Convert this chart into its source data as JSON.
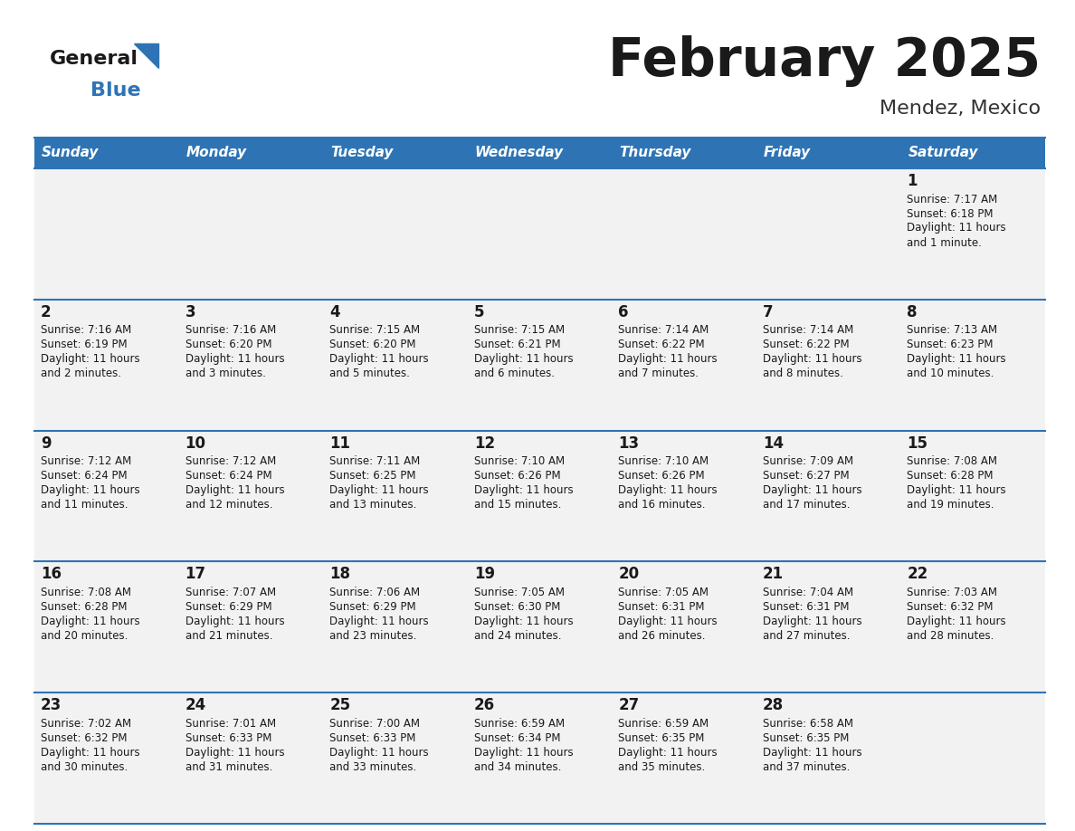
{
  "title": "February 2025",
  "subtitle": "Mendez, Mexico",
  "header_bg": "#2E74B5",
  "header_text_color": "#FFFFFF",
  "cell_bg": "#F2F2F2",
  "separator_color": "#2E74B5",
  "text_color": "#1a1a1a",
  "days_of_week": [
    "Sunday",
    "Monday",
    "Tuesday",
    "Wednesday",
    "Thursday",
    "Friday",
    "Saturday"
  ],
  "calendar_data": [
    [
      null,
      null,
      null,
      null,
      null,
      null,
      {
        "day": 1,
        "sunrise": "7:17 AM",
        "sunset": "6:18 PM",
        "daylight": "11 hours",
        "daylight2": "and 1 minute."
      }
    ],
    [
      {
        "day": 2,
        "sunrise": "7:16 AM",
        "sunset": "6:19 PM",
        "daylight": "11 hours",
        "daylight2": "and 2 minutes."
      },
      {
        "day": 3,
        "sunrise": "7:16 AM",
        "sunset": "6:20 PM",
        "daylight": "11 hours",
        "daylight2": "and 3 minutes."
      },
      {
        "day": 4,
        "sunrise": "7:15 AM",
        "sunset": "6:20 PM",
        "daylight": "11 hours",
        "daylight2": "and 5 minutes."
      },
      {
        "day": 5,
        "sunrise": "7:15 AM",
        "sunset": "6:21 PM",
        "daylight": "11 hours",
        "daylight2": "and 6 minutes."
      },
      {
        "day": 6,
        "sunrise": "7:14 AM",
        "sunset": "6:22 PM",
        "daylight": "11 hours",
        "daylight2": "and 7 minutes."
      },
      {
        "day": 7,
        "sunrise": "7:14 AM",
        "sunset": "6:22 PM",
        "daylight": "11 hours",
        "daylight2": "and 8 minutes."
      },
      {
        "day": 8,
        "sunrise": "7:13 AM",
        "sunset": "6:23 PM",
        "daylight": "11 hours",
        "daylight2": "and 10 minutes."
      }
    ],
    [
      {
        "day": 9,
        "sunrise": "7:12 AM",
        "sunset": "6:24 PM",
        "daylight": "11 hours",
        "daylight2": "and 11 minutes."
      },
      {
        "day": 10,
        "sunrise": "7:12 AM",
        "sunset": "6:24 PM",
        "daylight": "11 hours",
        "daylight2": "and 12 minutes."
      },
      {
        "day": 11,
        "sunrise": "7:11 AM",
        "sunset": "6:25 PM",
        "daylight": "11 hours",
        "daylight2": "and 13 minutes."
      },
      {
        "day": 12,
        "sunrise": "7:10 AM",
        "sunset": "6:26 PM",
        "daylight": "11 hours",
        "daylight2": "and 15 minutes."
      },
      {
        "day": 13,
        "sunrise": "7:10 AM",
        "sunset": "6:26 PM",
        "daylight": "11 hours",
        "daylight2": "and 16 minutes."
      },
      {
        "day": 14,
        "sunrise": "7:09 AM",
        "sunset": "6:27 PM",
        "daylight": "11 hours",
        "daylight2": "and 17 minutes."
      },
      {
        "day": 15,
        "sunrise": "7:08 AM",
        "sunset": "6:28 PM",
        "daylight": "11 hours",
        "daylight2": "and 19 minutes."
      }
    ],
    [
      {
        "day": 16,
        "sunrise": "7:08 AM",
        "sunset": "6:28 PM",
        "daylight": "11 hours",
        "daylight2": "and 20 minutes."
      },
      {
        "day": 17,
        "sunrise": "7:07 AM",
        "sunset": "6:29 PM",
        "daylight": "11 hours",
        "daylight2": "and 21 minutes."
      },
      {
        "day": 18,
        "sunrise": "7:06 AM",
        "sunset": "6:29 PM",
        "daylight": "11 hours",
        "daylight2": "and 23 minutes."
      },
      {
        "day": 19,
        "sunrise": "7:05 AM",
        "sunset": "6:30 PM",
        "daylight": "11 hours",
        "daylight2": "and 24 minutes."
      },
      {
        "day": 20,
        "sunrise": "7:05 AM",
        "sunset": "6:31 PM",
        "daylight": "11 hours",
        "daylight2": "and 26 minutes."
      },
      {
        "day": 21,
        "sunrise": "7:04 AM",
        "sunset": "6:31 PM",
        "daylight": "11 hours",
        "daylight2": "and 27 minutes."
      },
      {
        "day": 22,
        "sunrise": "7:03 AM",
        "sunset": "6:32 PM",
        "daylight": "11 hours",
        "daylight2": "and 28 minutes."
      }
    ],
    [
      {
        "day": 23,
        "sunrise": "7:02 AM",
        "sunset": "6:32 PM",
        "daylight": "11 hours",
        "daylight2": "and 30 minutes."
      },
      {
        "day": 24,
        "sunrise": "7:01 AM",
        "sunset": "6:33 PM",
        "daylight": "11 hours",
        "daylight2": "and 31 minutes."
      },
      {
        "day": 25,
        "sunrise": "7:00 AM",
        "sunset": "6:33 PM",
        "daylight": "11 hours",
        "daylight2": "and 33 minutes."
      },
      {
        "day": 26,
        "sunrise": "6:59 AM",
        "sunset": "6:34 PM",
        "daylight": "11 hours",
        "daylight2": "and 34 minutes."
      },
      {
        "day": 27,
        "sunrise": "6:59 AM",
        "sunset": "6:35 PM",
        "daylight": "11 hours",
        "daylight2": "and 35 minutes."
      },
      {
        "day": 28,
        "sunrise": "6:58 AM",
        "sunset": "6:35 PM",
        "daylight": "11 hours",
        "daylight2": "and 37 minutes."
      },
      null
    ]
  ]
}
